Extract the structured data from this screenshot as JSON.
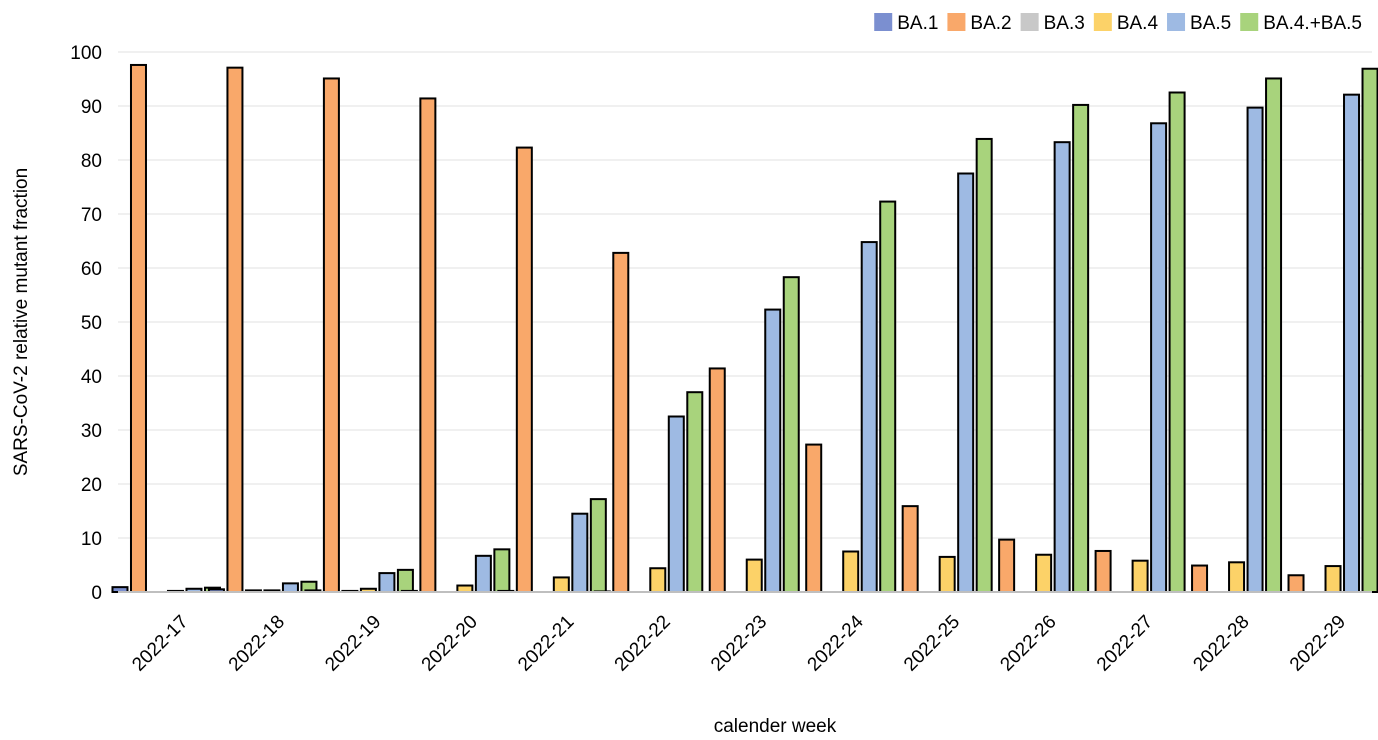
{
  "chart_data": {
    "type": "bar",
    "title": "",
    "xlabel": "calender week",
    "ylabel": "SARS-CoV-2 relative mutant fraction",
    "ylim": [
      0,
      100
    ],
    "yticks": [
      0,
      10,
      20,
      30,
      40,
      50,
      60,
      70,
      80,
      90,
      100
    ],
    "grid": true,
    "legend_position": "top-right",
    "categories": [
      "2022-17",
      "2022-18",
      "2022-19",
      "2022-20",
      "2022-21",
      "2022-22",
      "2022-23",
      "2022-24",
      "2022-25",
      "2022-26",
      "2022-27",
      "2022-28",
      "2022-29"
    ],
    "series": [
      {
        "name": "BA.1",
        "color": "#7b8fd0",
        "values": [
          0.9,
          0.5,
          0.3,
          0.2,
          0.2,
          0.1,
          0.0,
          0.0,
          0.0,
          0.0,
          0.0,
          0.0,
          0.0
        ]
      },
      {
        "name": "BA.2",
        "color": "#f9a86a",
        "values": [
          97.6,
          97.1,
          95.1,
          91.4,
          82.3,
          62.8,
          41.4,
          27.3,
          15.9,
          9.7,
          7.6,
          4.9,
          3.1
        ]
      },
      {
        "name": "BA.3",
        "color": "#c8c8c8",
        "values": [
          0.0,
          0.3,
          0.2,
          0.0,
          0.0,
          0.0,
          0.0,
          0.0,
          0.0,
          0.0,
          0.0,
          0.0,
          0.0
        ]
      },
      {
        "name": "BA.4",
        "color": "#fcd268",
        "values": [
          0.2,
          0.3,
          0.6,
          1.2,
          2.7,
          4.4,
          6.0,
          7.5,
          6.5,
          6.9,
          5.8,
          5.5,
          4.8
        ]
      },
      {
        "name": "BA.5",
        "color": "#9ebae3",
        "values": [
          0.6,
          1.6,
          3.5,
          6.7,
          14.5,
          32.5,
          52.3,
          64.8,
          77.5,
          83.3,
          86.8,
          89.7,
          92.1
        ]
      },
      {
        "name": "BA.4.+BA.5",
        "color": "#a8d37c",
        "values": [
          0.8,
          1.9,
          4.1,
          7.9,
          17.2,
          37.0,
          58.3,
          72.3,
          83.9,
          90.2,
          92.5,
          95.1,
          96.9
        ]
      }
    ]
  }
}
